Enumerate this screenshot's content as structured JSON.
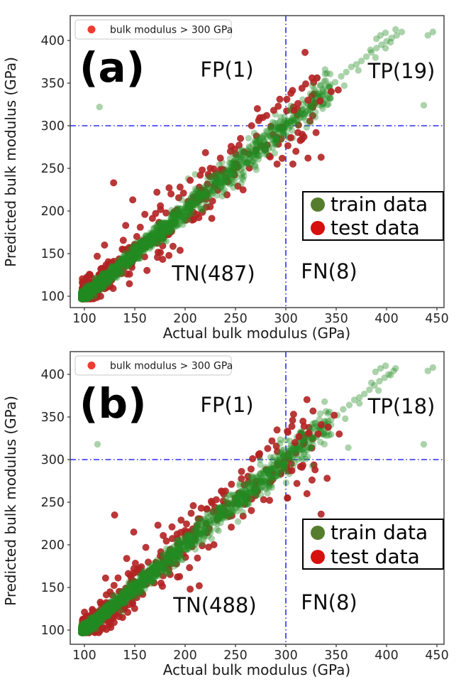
{
  "figure": {
    "background": "#ffffff"
  },
  "chart_data": [
    {
      "type": "scatter",
      "panel_label": "(a)",
      "xlabel": "Actual bulk modulus (GPa)",
      "ylabel": "Predicted bulk modulus (GPa)",
      "x_ticks": [
        100,
        150,
        200,
        250,
        300,
        350,
        400,
        450
      ],
      "y_ticks": [
        100,
        150,
        200,
        250,
        300,
        350,
        400
      ],
      "xlim": [
        86,
        458
      ],
      "ylim": [
        86,
        429
      ],
      "grid": false,
      "threshold": {
        "value": 300,
        "color": "#2b2bf5",
        "style": "dash-dot"
      },
      "threshold_legend": {
        "label": "bulk modulus > 300 GPa",
        "marker_color": "#ee3c30"
      },
      "legend": [
        {
          "label": "train data",
          "color": "#567d2e"
        },
        {
          "label": "test data",
          "color": "#d60f0f"
        }
      ],
      "quadrants": {
        "fp": {
          "label": "FP(1)",
          "count": 1
        },
        "tp": {
          "label": "TP(19)",
          "count": 19
        },
        "tn": {
          "label": "TN(487)",
          "count": 487
        },
        "fn": {
          "label": "FN(8)",
          "count": 8
        }
      },
      "series": [
        {
          "name": "test data",
          "color": "#b22222",
          "opacity": 0.9,
          "radius": 5.0,
          "generator": {
            "seed": 20231,
            "n": 470,
            "x_min": 98,
            "x_max": 330,
            "x_skew": 3.3,
            "noise_base": 8,
            "noise_slope": 0.075
          },
          "highlight_points": [
            [
              294,
              331
            ],
            [
              301,
              331
            ],
            [
              305,
              338
            ],
            [
              308,
              318
            ],
            [
              312,
              326
            ],
            [
              316,
              344
            ],
            [
              322,
              330
            ],
            [
              326,
              356
            ],
            [
              331,
              356
            ],
            [
              334,
              329
            ],
            [
              345,
              340
            ],
            [
              352,
              342
            ],
            [
              305,
              286
            ],
            [
              310,
              270
            ],
            [
              312,
              292
            ],
            [
              318,
              287
            ],
            [
              322,
              262
            ],
            [
              330,
              292
            ],
            [
              307,
              255
            ],
            [
              335,
              263
            ],
            [
              129,
              233
            ],
            [
              148,
              213
            ],
            [
              160,
              196
            ],
            [
              172,
              222
            ],
            [
              186,
              220
            ],
            [
              141,
              183
            ],
            [
              152,
              170
            ],
            [
              120,
              160
            ],
            [
              266,
              300
            ],
            [
              273,
              306
            ],
            [
              281,
              312
            ],
            [
              288,
              318
            ],
            [
              255,
              285
            ],
            [
              245,
              270
            ],
            [
              235,
              262
            ],
            [
              225,
              250
            ],
            [
              215,
              242
            ],
            [
              205,
              236
            ],
            [
              195,
              228
            ]
          ]
        },
        {
          "name": "train data",
          "color": "#228b22",
          "opacity": 0.38,
          "radius": 4.7,
          "generator": {
            "seed": 1137,
            "n": 1900,
            "x_min": 97,
            "x_max": 345,
            "x_skew": 3.1,
            "noise_base": 3,
            "noise_slope": 0.035
          },
          "highlight_points": [
            [
              115,
              322
            ],
            [
              287,
              304
            ],
            [
              292,
              299
            ],
            [
              297,
              303
            ],
            [
              302,
              306
            ],
            [
              307,
              310
            ],
            [
              312,
              315
            ],
            [
              317,
              319
            ],
            [
              322,
              325
            ],
            [
              327,
              330
            ],
            [
              332,
              335
            ],
            [
              337,
              340
            ],
            [
              343,
              346
            ],
            [
              349,
              351
            ],
            [
              355,
              358
            ],
            [
              360,
              363
            ],
            [
              365,
              369
            ],
            [
              370,
              372
            ],
            [
              375,
              376
            ],
            [
              380,
              381
            ],
            [
              385,
              386
            ],
            [
              389,
              380
            ],
            [
              390,
              391
            ],
            [
              395,
              395
            ],
            [
              399,
              391
            ],
            [
              400,
              399
            ],
            [
              405,
              403
            ],
            [
              410,
              406
            ],
            [
              415,
              410
            ],
            [
              390,
              402
            ],
            [
              394,
              406
            ],
            [
              399,
              409
            ],
            [
              404,
              398
            ],
            [
              409,
              413
            ],
            [
              437,
              324
            ],
            [
              446,
              410
            ],
            [
              441,
              406
            ],
            [
              372,
              365
            ],
            [
              384,
              389
            ],
            [
              358,
              347
            ],
            [
              341,
              332
            ],
            [
              262,
              271
            ],
            [
              270,
              279
            ],
            [
              277,
              286
            ],
            [
              203,
              238
            ],
            [
              210,
              243
            ],
            [
              295,
              310
            ],
            [
              305,
              300
            ],
            [
              310,
              306
            ]
          ]
        }
      ]
    },
    {
      "type": "scatter",
      "panel_label": "(b)",
      "xlabel": "Actual bulk modulus (GPa)",
      "ylabel": "Predicted bulk modulus (GPa)",
      "x_ticks": [
        100,
        150,
        200,
        250,
        300,
        350,
        400,
        450
      ],
      "y_ticks": [
        100,
        150,
        200,
        250,
        300,
        350,
        400
      ],
      "xlim": [
        86,
        458
      ],
      "ylim": [
        86,
        429
      ],
      "grid": false,
      "threshold": {
        "value": 300,
        "color": "#2b2bf5",
        "style": "dash-dot"
      },
      "threshold_legend": {
        "label": "bulk modulus > 300 GPa",
        "marker_color": "#ee3c30"
      },
      "legend": [
        {
          "label": "train data",
          "color": "#567d2e"
        },
        {
          "label": "test data",
          "color": "#d60f0f"
        }
      ],
      "quadrants": {
        "fp": {
          "label": "FP(1)",
          "count": 1
        },
        "tp": {
          "label": "TP(18)",
          "count": 18
        },
        "tn": {
          "label": "TN(488)",
          "count": 488
        },
        "fn": {
          "label": "FN(8)",
          "count": 8
        }
      },
      "series": [
        {
          "name": "test data",
          "color": "#b22222",
          "opacity": 0.9,
          "radius": 5.0,
          "generator": {
            "seed": 5511,
            "n": 470,
            "x_min": 98,
            "x_max": 330,
            "x_skew": 3.3,
            "noise_base": 8,
            "noise_slope": 0.075
          },
          "highlight_points": [
            [
              302,
              332
            ],
            [
              306,
              339
            ],
            [
              309,
              320
            ],
            [
              313,
              327
            ],
            [
              317,
              345
            ],
            [
              323,
              331
            ],
            [
              327,
              357
            ],
            [
              332,
              330
            ],
            [
              335,
              341
            ],
            [
              342,
              338
            ],
            [
              348,
              352
            ],
            [
              353,
              330
            ],
            [
              306,
              287
            ],
            [
              311,
              272
            ],
            [
              316,
              291
            ],
            [
              321,
              260
            ],
            [
              326,
              276
            ],
            [
              329,
              288
            ],
            [
              335,
              236
            ],
            [
              341,
              278
            ],
            [
              130,
              235
            ],
            [
              149,
              215
            ],
            [
              161,
              197
            ],
            [
              173,
              223
            ],
            [
              187,
              221
            ],
            [
              142,
              184
            ],
            [
              153,
              171
            ],
            [
              121,
              161
            ],
            [
              205,
              148
            ],
            [
              214,
              152
            ],
            [
              267,
              301
            ],
            [
              274,
              307
            ],
            [
              282,
              313
            ],
            [
              256,
              286
            ],
            [
              246,
              271
            ],
            [
              236,
              263
            ],
            [
              226,
              251
            ],
            [
              216,
              243
            ],
            [
              206,
              237
            ],
            [
              196,
              229
            ]
          ]
        },
        {
          "name": "train data",
          "color": "#228b22",
          "opacity": 0.38,
          "radius": 4.7,
          "generator": {
            "seed": 9241,
            "n": 1900,
            "x_min": 97,
            "x_max": 345,
            "x_skew": 3.1,
            "noise_base": 3,
            "noise_slope": 0.035
          },
          "highlight_points": [
            [
              113,
              318
            ],
            [
              288,
              303
            ],
            [
              293,
              299
            ],
            [
              298,
              304
            ],
            [
              303,
              307
            ],
            [
              308,
              312
            ],
            [
              313,
              316
            ],
            [
              318,
              320
            ],
            [
              323,
              326
            ],
            [
              328,
              331
            ],
            [
              333,
              336
            ],
            [
              339,
              341
            ],
            [
              345,
              347
            ],
            [
              351,
              352
            ],
            [
              357,
              359
            ],
            [
              362,
              314
            ],
            [
              363,
              364
            ],
            [
              368,
              370
            ],
            [
              373,
              373
            ],
            [
              378,
              377
            ],
            [
              383,
              382
            ],
            [
              388,
              387
            ],
            [
              392,
              381
            ],
            [
              393,
              392
            ],
            [
              398,
              396
            ],
            [
              402,
              400
            ],
            [
              407,
              404
            ],
            [
              389,
              403
            ],
            [
              394,
              407
            ],
            [
              399,
              410
            ],
            [
              404,
              399
            ],
            [
              409,
              407
            ],
            [
              437,
              318
            ],
            [
              446,
              408
            ],
            [
              441,
              404
            ],
            [
              373,
              366
            ],
            [
              385,
              390
            ],
            [
              359,
              348
            ],
            [
              342,
              333
            ],
            [
              263,
              272
            ],
            [
              271,
              280
            ],
            [
              278,
              287
            ],
            [
              296,
              311
            ],
            [
              306,
              301
            ]
          ]
        }
      ]
    }
  ]
}
